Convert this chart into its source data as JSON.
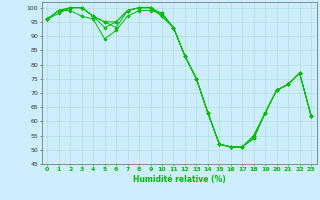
{
  "title": "",
  "xlabel": "Humidité relative (%)",
  "ylabel": "",
  "background_color": "#cceeff",
  "grid_color": "#aaddcc",
  "line_color": "#00bb00",
  "marker_color": "#00bb00",
  "xlim_min": -0.5,
  "xlim_max": 23.5,
  "ylim_min": 45,
  "ylim_max": 102,
  "yticks": [
    45,
    50,
    55,
    60,
    65,
    70,
    75,
    80,
    85,
    90,
    95,
    100
  ],
  "xticks": [
    0,
    1,
    2,
    3,
    4,
    5,
    6,
    7,
    8,
    9,
    10,
    11,
    12,
    13,
    14,
    15,
    16,
    17,
    18,
    19,
    20,
    21,
    22,
    23
  ],
  "lines": [
    [
      96,
      99,
      99,
      97,
      96,
      89,
      92,
      97,
      99,
      99,
      98,
      93,
      83,
      75,
      63,
      52,
      51,
      51,
      55,
      63,
      71,
      73,
      77,
      62
    ],
    [
      96,
      99,
      100,
      100,
      97,
      95,
      93,
      99,
      100,
      100,
      98,
      93,
      83,
      75,
      63,
      52,
      51,
      51,
      55,
      63,
      71,
      73,
      77,
      62
    ],
    [
      96,
      99,
      100,
      100,
      97,
      93,
      95,
      99,
      100,
      100,
      97,
      93,
      83,
      75,
      63,
      52,
      51,
      51,
      54,
      63,
      71,
      73,
      77,
      62
    ],
    [
      96,
      98,
      100,
      100,
      97,
      95,
      95,
      99,
      100,
      100,
      97,
      93,
      83,
      75,
      63,
      52,
      51,
      51,
      54,
      63,
      71,
      73,
      77,
      62
    ]
  ],
  "xlabel_fontsize": 5.5,
  "tick_fontsize": 4.5,
  "linewidth": 0.7,
  "markersize": 1.8
}
